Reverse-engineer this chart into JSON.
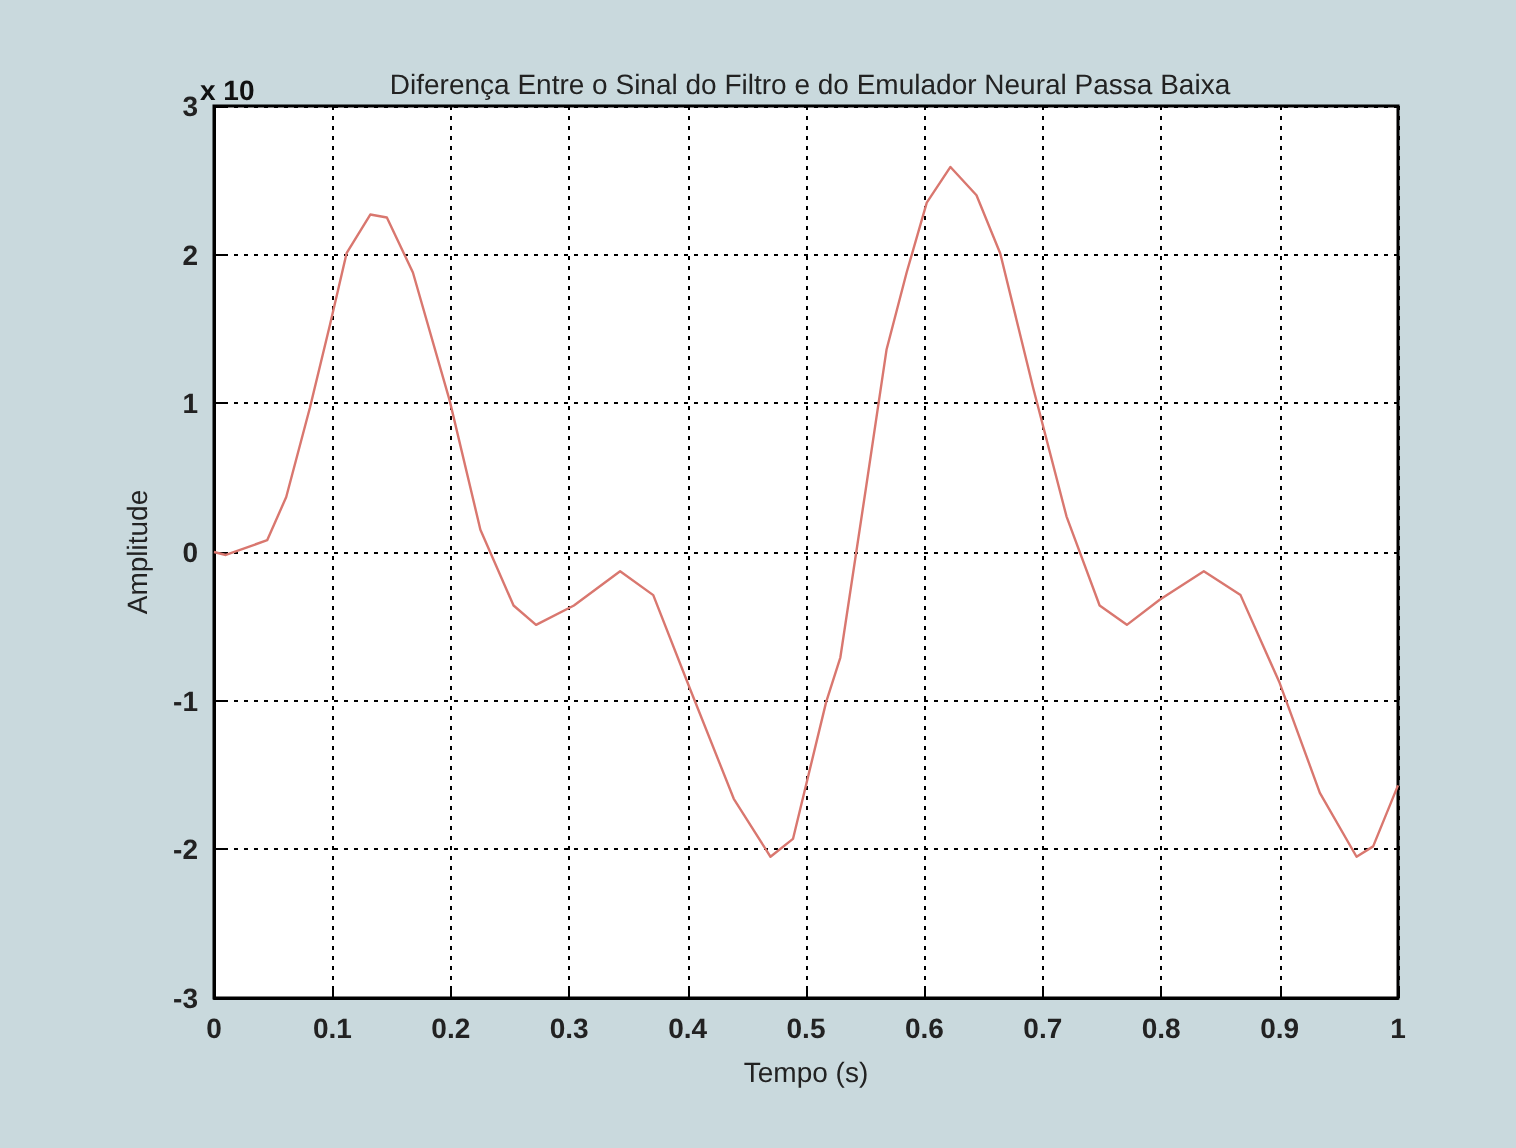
{
  "chart_data": {
    "type": "line",
    "title": "Diferença Entre o Sinal do Filtro e do Emulador Neural Passa Baixa",
    "xlabel": "Tempo (s)",
    "ylabel": "Amplitude",
    "annotations": [
      "x 10"
    ],
    "x": [
      0,
      0.01,
      0.045,
      0.061,
      0.081,
      0.098,
      0.112,
      0.132,
      0.146,
      0.168,
      0.199,
      0.225,
      0.253,
      0.272,
      0.304,
      0.343,
      0.371,
      0.402,
      0.439,
      0.47,
      0.489,
      0.517,
      0.529,
      0.551,
      0.568,
      0.585,
      0.602,
      0.622,
      0.644,
      0.664,
      0.692,
      0.72,
      0.748,
      0.771,
      0.799,
      0.836,
      0.867,
      0.9,
      0.934,
      0.965,
      0.979,
      1
    ],
    "series": [
      {
        "color": "#d9776f",
        "values": [
          0,
          -0.02,
          0.08,
          0.37,
          0.97,
          1.53,
          2.01,
          2.27,
          2.25,
          1.88,
          1.02,
          0.15,
          -0.36,
          -0.49,
          -0.36,
          -0.13,
          -0.29,
          -0.92,
          -1.66,
          -2.05,
          -1.93,
          -1.01,
          -0.71,
          0.45,
          1.36,
          1.88,
          2.35,
          2.59,
          2.4,
          2.01,
          1.1,
          0.24,
          -0.36,
          -0.49,
          -0.32,
          -0.13,
          -0.29,
          -0.88,
          -1.62,
          -2.05,
          -1.98,
          -1.57
        ]
      }
    ],
    "xlim": [
      0,
      1
    ],
    "xticks": [
      0,
      0.1,
      0.2,
      0.3,
      0.4,
      0.5,
      0.6,
      0.7,
      0.8,
      0.9,
      1
    ],
    "ylim": [
      -3,
      3
    ],
    "yticks": [
      -3,
      -2,
      -1,
      0,
      1,
      2,
      3
    ],
    "grid": true,
    "marker": "none",
    "line_style": "solid"
  }
}
